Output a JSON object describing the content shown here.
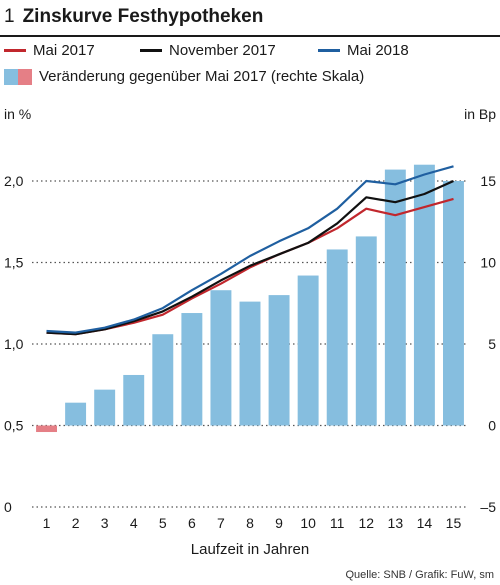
{
  "figure": {
    "number": "1",
    "title": "Zinskurve Festhypotheken",
    "unit_left": "in %",
    "unit_right": "in Bp",
    "source": "Quelle: SNB / Grafik: FuW, sm"
  },
  "legend": {
    "mai2017": "Mai 2017",
    "nov2017": "November 2017",
    "mai2018": "Mai 2018",
    "change": "Veränderung gegenüber Mai 2017 (rechte Skala)"
  },
  "colors": {
    "mai2017": "#c1272d",
    "nov2017": "#111111",
    "mai2018": "#1f5fa0",
    "bar": "#86bedf",
    "bar_negative": "#e57f86",
    "grid": "#555555"
  },
  "chart_data": {
    "type": "bar+line",
    "categories": [
      "1",
      "2",
      "3",
      "4",
      "5",
      "6",
      "7",
      "8",
      "9",
      "10",
      "11",
      "12",
      "13",
      "14",
      "15"
    ],
    "xlabel": "Laufzeit in Jahren",
    "y_left": {
      "label": "in %",
      "ylim": [
        0,
        2.0
      ],
      "ticks": [
        0,
        0.5,
        1.0,
        1.5,
        2.0
      ],
      "tick_labels": [
        "0",
        "0,5",
        "1,0",
        "1,5",
        "2,0"
      ]
    },
    "y_right": {
      "label": "in Bp",
      "ylim": [
        -5,
        15
      ],
      "ticks": [
        -5,
        0,
        5,
        10,
        15
      ],
      "tick_labels": [
        "–5",
        "0",
        "5",
        "10",
        "15"
      ]
    },
    "grid": "horizontal dotted",
    "series": [
      {
        "name": "Mai 2017",
        "axis": "left",
        "type": "line",
        "values": [
          1.07,
          1.06,
          1.09,
          1.13,
          1.18,
          1.28,
          1.37,
          1.47,
          1.55,
          1.62,
          1.71,
          1.83,
          1.79,
          1.84,
          1.89
        ]
      },
      {
        "name": "November 2017",
        "axis": "left",
        "type": "line",
        "values": [
          1.07,
          1.06,
          1.09,
          1.14,
          1.2,
          1.29,
          1.39,
          1.48,
          1.55,
          1.62,
          1.74,
          1.9,
          1.87,
          1.92,
          2.0
        ]
      },
      {
        "name": "Mai 2018",
        "axis": "left",
        "type": "line",
        "values": [
          1.08,
          1.07,
          1.1,
          1.15,
          1.22,
          1.33,
          1.43,
          1.54,
          1.63,
          1.71,
          1.83,
          2.0,
          1.98,
          2.04,
          2.09
        ]
      },
      {
        "name": "Veränderung gegenüber Mai 2017 (rechte Skala)",
        "axis": "right",
        "type": "bar",
        "values": [
          -0.4,
          1.4,
          2.2,
          3.1,
          5.6,
          6.9,
          8.3,
          7.6,
          8.0,
          9.2,
          10.8,
          11.6,
          15.7,
          16.0,
          15.0
        ]
      }
    ]
  }
}
